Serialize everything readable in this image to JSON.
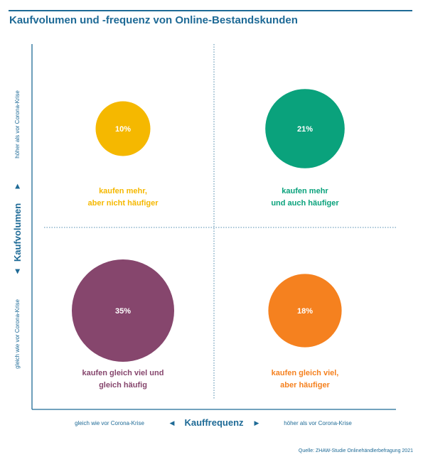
{
  "title": "Kaufvolumen und -frequenz von Online-Bestandskunden",
  "source": "Quelle: ZHAW-Studie Onlinehändlerbefragung 2021",
  "axis_color": "#1e6a96",
  "chart_data": {
    "type": "bubble-quadrant",
    "x_axis": {
      "label": "Kauffrequenz",
      "low_label": "gleich wie vor Corona-Krise",
      "high_label": "höher als vor Corona-Krise"
    },
    "y_axis": {
      "label": "Kaufvolumen",
      "low_label": "gleich wie vor Corona-Krise",
      "high_label": "höher als vor Corona-Krise"
    },
    "grid": true,
    "quadrants": [
      {
        "id": "q-more-not-more-often",
        "x": "low",
        "y": "high",
        "value": 10,
        "value_label": "10%",
        "label_lines": [
          "kaufen mehr,",
          "aber nicht häufiger"
        ],
        "color": "#f5b800"
      },
      {
        "id": "q-more-and-more-often",
        "x": "high",
        "y": "high",
        "value": 21,
        "value_label": "21%",
        "label_lines": [
          "kaufen mehr",
          "und auch häufiger"
        ],
        "color": "#0aa27c"
      },
      {
        "id": "q-same-same",
        "x": "low",
        "y": "low",
        "value": 35,
        "value_label": "35%",
        "label_lines": [
          "kaufen gleich viel und",
          "gleich häufig"
        ],
        "color": "#86466d"
      },
      {
        "id": "q-same-more-often",
        "x": "high",
        "y": "low",
        "value": 18,
        "value_label": "18%",
        "label_lines": [
          "kaufen gleich viel,",
          "aber häufiger"
        ],
        "color": "#f5811f"
      }
    ]
  }
}
